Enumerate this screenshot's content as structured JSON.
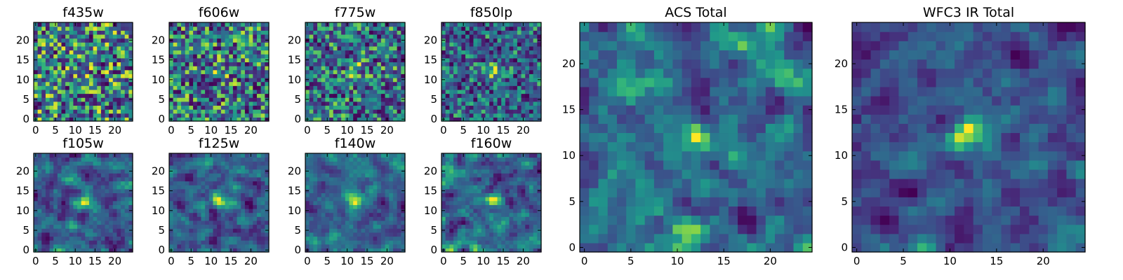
{
  "chart_data": [
    {
      "type": "heatmap",
      "title": "f435w",
      "grid": false,
      "grid_size": [
        25,
        25
      ],
      "x_ticks": [
        "0",
        "5",
        "10",
        "15",
        "20"
      ],
      "y_ticks": [
        "0",
        "5",
        "10",
        "15",
        "20"
      ],
      "colormap": "viridis",
      "values_estimated": true
    },
    {
      "type": "heatmap",
      "title": "f606w",
      "grid": false,
      "grid_size": [
        25,
        25
      ],
      "x_ticks": [
        "0",
        "5",
        "10",
        "15",
        "20"
      ],
      "y_ticks": [
        "0",
        "5",
        "10",
        "15",
        "20"
      ],
      "colormap": "viridis",
      "values_estimated": true
    },
    {
      "type": "heatmap",
      "title": "f775w",
      "grid": false,
      "grid_size": [
        25,
        25
      ],
      "x_ticks": [
        "0",
        "5",
        "10",
        "15",
        "20"
      ],
      "y_ticks": [
        "0",
        "5",
        "10",
        "15",
        "20"
      ],
      "colormap": "viridis",
      "values_estimated": true
    },
    {
      "type": "heatmap",
      "title": "f850lp",
      "grid": false,
      "grid_size": [
        25,
        25
      ],
      "x_ticks": [
        "0",
        "5",
        "10",
        "15",
        "20"
      ],
      "y_ticks": [
        "0",
        "5",
        "10",
        "15",
        "20"
      ],
      "colormap": "viridis",
      "values_estimated": true
    },
    {
      "type": "heatmap",
      "title": "f105w",
      "grid": false,
      "grid_size": [
        25,
        25
      ],
      "x_ticks": [
        "0",
        "5",
        "10",
        "15",
        "20"
      ],
      "y_ticks": [
        "0",
        "5",
        "10",
        "15",
        "20"
      ],
      "colormap": "viridis",
      "values_estimated": true
    },
    {
      "type": "heatmap",
      "title": "f125w",
      "grid": false,
      "grid_size": [
        25,
        25
      ],
      "x_ticks": [
        "0",
        "5",
        "10",
        "15",
        "20"
      ],
      "y_ticks": [
        "0",
        "5",
        "10",
        "15",
        "20"
      ],
      "colormap": "viridis",
      "values_estimated": true
    },
    {
      "type": "heatmap",
      "title": "f140w",
      "grid": false,
      "grid_size": [
        25,
        25
      ],
      "x_ticks": [
        "0",
        "5",
        "10",
        "15",
        "20"
      ],
      "y_ticks": [
        "0",
        "5",
        "10",
        "15",
        "20"
      ],
      "colormap": "viridis",
      "values_estimated": true
    },
    {
      "type": "heatmap",
      "title": "f160w",
      "grid": false,
      "grid_size": [
        25,
        25
      ],
      "x_ticks": [
        "0",
        "5",
        "10",
        "15",
        "20"
      ],
      "y_ticks": [
        "0",
        "5",
        "10",
        "15",
        "20"
      ],
      "colormap": "viridis",
      "values_estimated": true
    },
    {
      "type": "heatmap",
      "title": "ACS Total",
      "grid": false,
      "grid_size": [
        25,
        25
      ],
      "x_ticks": [
        "0",
        "5",
        "10",
        "15",
        "20"
      ],
      "y_ticks": [
        "0",
        "5",
        "10",
        "15",
        "20"
      ],
      "colormap": "viridis",
      "values_estimated": true
    },
    {
      "type": "heatmap",
      "title": "WFC3 IR Total",
      "grid": false,
      "grid_size": [
        25,
        25
      ],
      "x_ticks": [
        "0",
        "5",
        "10",
        "15",
        "20"
      ],
      "y_ticks": [
        "0",
        "5",
        "10",
        "15",
        "20"
      ],
      "colormap": "viridis",
      "values_estimated": true
    }
  ]
}
